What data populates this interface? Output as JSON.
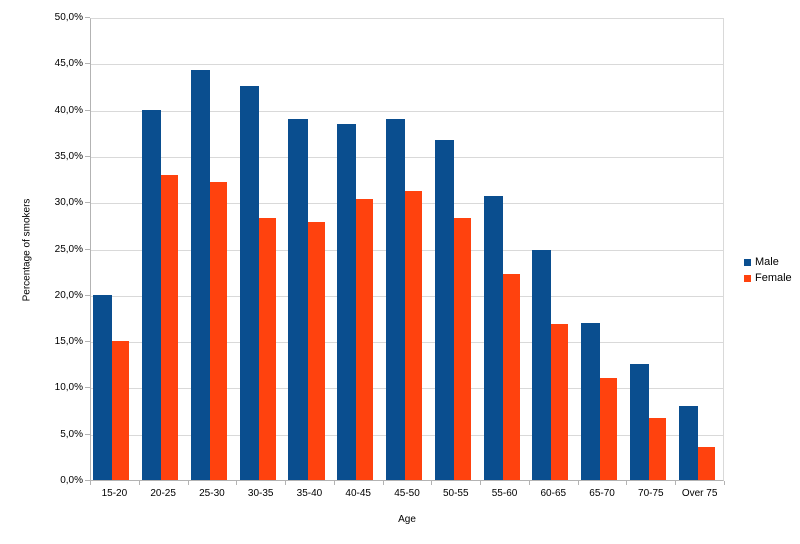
{
  "chart_data": {
    "type": "bar",
    "title": "",
    "xlabel": "Age",
    "ylabel": "Percentage of smokers",
    "categories": [
      "15-20",
      "20-25",
      "25-30",
      "30-35",
      "35-40",
      "40-45",
      "45-50",
      "50-55",
      "55-60",
      "60-65",
      "65-70",
      "70-75",
      "Over 75"
    ],
    "series": [
      {
        "name": "Male",
        "color": "#0A4E8F",
        "values": [
          20.0,
          40.0,
          44.3,
          42.5,
          39.0,
          38.4,
          39.0,
          36.7,
          30.7,
          24.8,
          17.0,
          12.5,
          8.0
        ]
      },
      {
        "name": "Female",
        "color": "#FF420E",
        "values": [
          15.0,
          32.9,
          32.2,
          28.3,
          27.9,
          30.3,
          31.2,
          28.3,
          22.2,
          16.8,
          11.0,
          6.7,
          3.6
        ]
      }
    ],
    "ylim": [
      0,
      50
    ],
    "ytick_step": 5,
    "ytick_labels": [
      "0,0%",
      "5,0%",
      "10,0%",
      "15,0%",
      "20,0%",
      "25,0%",
      "30,0%",
      "35,0%",
      "40,0%",
      "45,0%",
      "50,0%"
    ],
    "grid": true,
    "legend_position": "right"
  },
  "style": {
    "gridline_color": "#D9D9D9",
    "axis_line_color": "#B3B3B3",
    "text_color": "#000000",
    "background": "#FFFFFF"
  }
}
